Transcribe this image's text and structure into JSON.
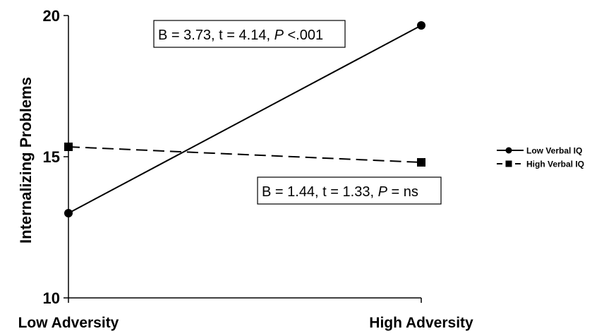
{
  "chart_data": {
    "type": "line",
    "title": "",
    "ylabel": "Internalizing Problems",
    "xlabel": "",
    "categories": [
      "Low Adversity",
      "High Adversity"
    ],
    "ylim": [
      10,
      20
    ],
    "yticks": [
      10,
      15,
      20
    ],
    "grid": false,
    "legend_position": "right",
    "series": [
      {
        "name": "Low Verbal IQ",
        "values": [
          13.0,
          19.65
        ],
        "line_style": "solid",
        "marker": "circle"
      },
      {
        "name": "High Verbal IQ",
        "values": [
          15.35,
          14.8
        ],
        "line_style": "dashed",
        "marker": "square"
      }
    ],
    "annotations": [
      {
        "text": "B = 3.73, t = 4.14, ",
        "italic": "P",
        "tail": " <.001"
      },
      {
        "text": "B = 1.44, t = 1.33, ",
        "italic": "P",
        "tail": " = ns"
      }
    ]
  }
}
